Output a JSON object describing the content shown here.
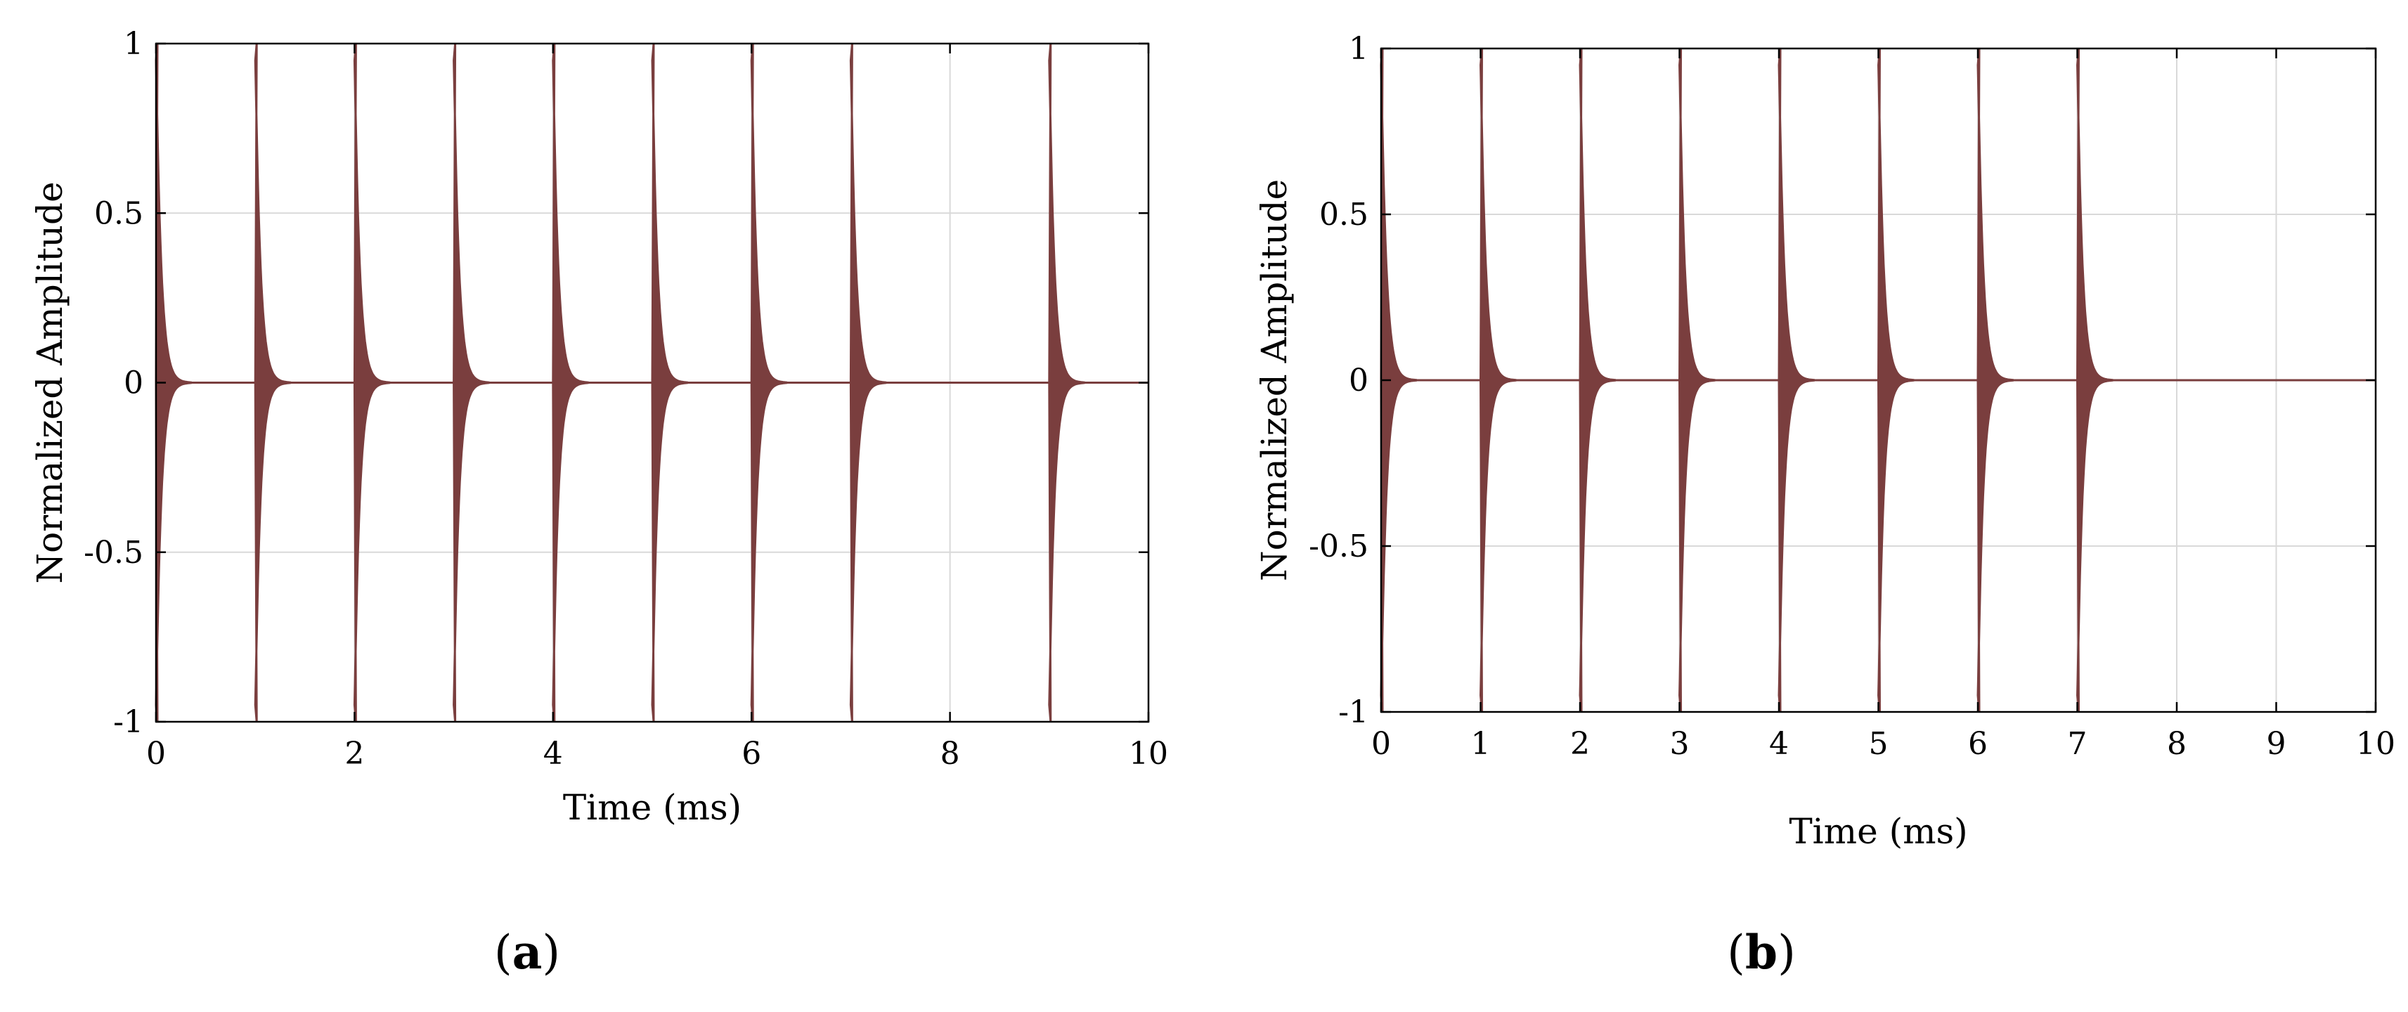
{
  "figure": {
    "panel_labels": [
      {
        "open": "(",
        "letter": "a",
        "close": ")"
      },
      {
        "open": "(",
        "letter": "b",
        "close": ")"
      }
    ]
  },
  "colors": {
    "signal": "#7a3e3e",
    "grid": "#d9d9d9",
    "axis": "#000000"
  },
  "chart_data": [
    {
      "type": "line",
      "panel": "a",
      "title": "",
      "xlabel": "Time (ms)",
      "ylabel": "Normalized Amplitude",
      "xlim": [
        0,
        10
      ],
      "ylim": [
        -1,
        1
      ],
      "xticks": [
        0,
        2,
        4,
        6,
        8,
        10
      ],
      "xtick_labels": [
        "0",
        "2",
        "4",
        "6",
        "8",
        "10"
      ],
      "yticks": [
        -1,
        -0.5,
        0,
        0.5,
        1
      ],
      "ytick_labels": [
        "-1",
        "-0.5",
        "0",
        "0.5",
        "1"
      ],
      "grid": true,
      "series": [
        {
          "description_of_shape": "decaying oscillatory bursts",
          "burst_onsets_ms": [
            0,
            1,
            2,
            3,
            4,
            5,
            6,
            7,
            9
          ],
          "peak_amplitude": 1,
          "decay_duration_ms": 0.35
        }
      ]
    },
    {
      "type": "line",
      "panel": "b",
      "title": "",
      "xlabel": "Time (ms)",
      "ylabel": "Normalized Amplitude",
      "xlim": [
        0,
        10
      ],
      "ylim": [
        -1,
        1
      ],
      "xticks": [
        0,
        1,
        2,
        3,
        4,
        5,
        6,
        7,
        8,
        9,
        10
      ],
      "xtick_labels": [
        "0",
        "1",
        "2",
        "3",
        "4",
        "5",
        "6",
        "7",
        "8",
        "9",
        "10"
      ],
      "yticks": [
        -1,
        -0.5,
        0,
        0.5,
        1
      ],
      "ytick_labels": [
        "-1",
        "-0.5",
        "0",
        "0.5",
        "1"
      ],
      "grid": true,
      "series": [
        {
          "description_of_shape": "decaying oscillatory bursts",
          "burst_onsets_ms": [
            0,
            1,
            2,
            3,
            4,
            5,
            6,
            7
          ],
          "peak_amplitude": 1,
          "decay_duration_ms": 0.35
        }
      ]
    }
  ]
}
